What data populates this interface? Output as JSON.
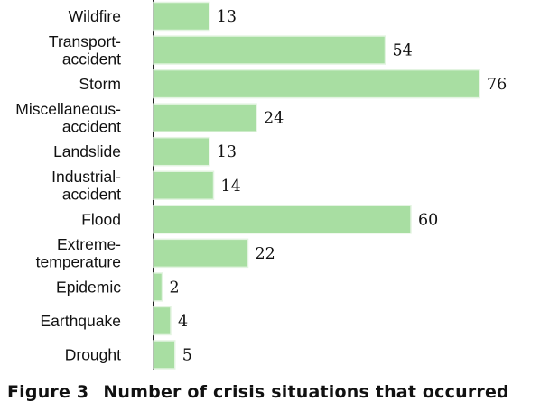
{
  "caption": {
    "label": "Figure 3",
    "text": "Number of crisis situations that occurred"
  },
  "chart_data": {
    "type": "bar",
    "orientation": "horizontal",
    "categories": [
      [
        "Wildfire"
      ],
      [
        "Transport-",
        "accident"
      ],
      [
        "Storm"
      ],
      [
        "Miscellaneous-",
        "accident"
      ],
      [
        "Landslide"
      ],
      [
        "Industrial-",
        "accident"
      ],
      [
        "Flood"
      ],
      [
        "Extreme-",
        "temperature"
      ],
      [
        "Epidemic"
      ],
      [
        "Earthquake"
      ],
      [
        "Drought"
      ]
    ],
    "values": [
      13,
      54,
      76,
      24,
      13,
      14,
      60,
      22,
      2,
      4,
      5
    ],
    "colors": {
      "bar_fill": "#a8dea2",
      "bar_edge": "#e3f4e1"
    },
    "grid": false,
    "legend": "none"
  }
}
